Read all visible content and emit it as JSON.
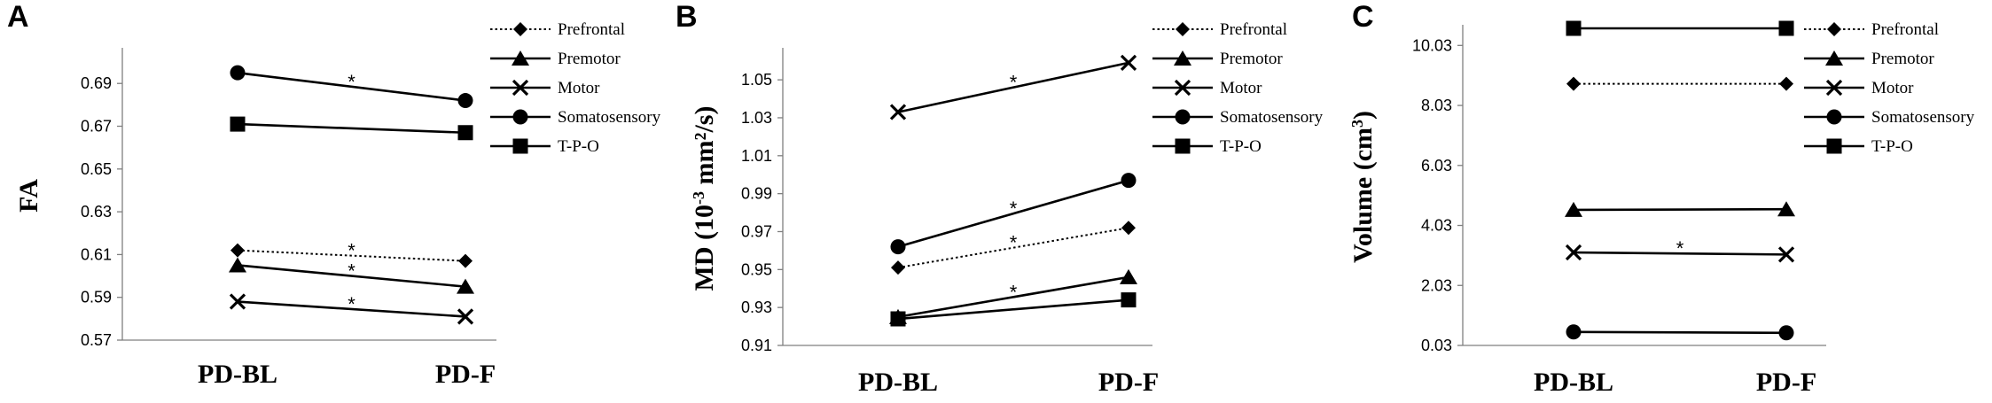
{
  "chart_data": [
    {
      "type": "line",
      "panel": "A",
      "ylabel": "FA",
      "ylabel_sup": "",
      "ylabel_suffix": "",
      "ylim": [
        0.57,
        0.705
      ],
      "yticks": [
        "0.57",
        "0.59",
        "0.61",
        "0.63",
        "0.65",
        "0.67",
        "0.69"
      ],
      "categories": [
        "PD-BL",
        "PD-F"
      ],
      "series": [
        {
          "name": "Prefrontal",
          "marker": "diamond",
          "dash": "dotted",
          "values": [
            0.612,
            0.607
          ],
          "sig": true
        },
        {
          "name": "Premotor",
          "marker": "triangle",
          "dash": "solid",
          "values": [
            0.605,
            0.595
          ],
          "sig": true
        },
        {
          "name": "Motor",
          "marker": "x",
          "dash": "solid",
          "values": [
            0.588,
            0.581
          ],
          "sig": true
        },
        {
          "name": "Somatosensory",
          "marker": "circle",
          "dash": "solid",
          "values": [
            0.695,
            0.682
          ],
          "sig": true
        },
        {
          "name": "T-P-O",
          "marker": "square",
          "dash": "solid",
          "values": [
            0.671,
            0.667
          ],
          "sig": false
        }
      ],
      "significance_marker": "*",
      "legend_placement": "top-right",
      "grid": false
    },
    {
      "type": "line",
      "panel": "B",
      "ylabel": "MD (10",
      "ylabel_sup": "-3",
      "ylabel_suffix": " mm²/s)",
      "ylim": [
        0.91,
        1.065
      ],
      "yticks": [
        "0.91",
        "0.93",
        "0.95",
        "0.97",
        "0.99",
        "1.01",
        "1.03",
        "1.05"
      ],
      "categories": [
        "PD-BL",
        "PD-F"
      ],
      "series": [
        {
          "name": "Prefrontal",
          "marker": "diamond",
          "dash": "dotted",
          "values": [
            0.951,
            0.972
          ],
          "sig": true
        },
        {
          "name": "Premotor",
          "marker": "triangle",
          "dash": "solid",
          "values": [
            0.925,
            0.946
          ],
          "sig": true
        },
        {
          "name": "Motor",
          "marker": "x",
          "dash": "solid",
          "values": [
            1.033,
            1.059
          ],
          "sig": true
        },
        {
          "name": "Somatosensory",
          "marker": "circle",
          "dash": "solid",
          "values": [
            0.962,
            0.997
          ],
          "sig": true
        },
        {
          "name": "T-P-O",
          "marker": "square",
          "dash": "solid",
          "values": [
            0.924,
            0.934
          ],
          "sig": false
        }
      ],
      "significance_marker": "*",
      "legend_placement": "top-right",
      "grid": false
    },
    {
      "type": "line",
      "panel": "C",
      "ylabel": "Volume (cm",
      "ylabel_sup": "3",
      "ylabel_suffix": ")",
      "ylim": [
        0.03,
        10.6
      ],
      "yticks": [
        "0.03",
        "2.03",
        "4.03",
        "6.03",
        "8.03",
        "10.03"
      ],
      "categories": [
        "PD-BL",
        "PD-F"
      ],
      "series": [
        {
          "name": "Prefrontal",
          "marker": "diamond",
          "dash": "dotted",
          "values": [
            8.75,
            8.75
          ],
          "sig": false
        },
        {
          "name": "Premotor",
          "marker": "triangle",
          "dash": "solid",
          "values": [
            4.55,
            4.57
          ],
          "sig": false
        },
        {
          "name": "Motor",
          "marker": "x",
          "dash": "solid",
          "values": [
            3.13,
            3.06
          ],
          "sig": true
        },
        {
          "name": "Somatosensory",
          "marker": "circle",
          "dash": "solid",
          "values": [
            0.48,
            0.45
          ],
          "sig": false
        },
        {
          "name": "T-P-O",
          "marker": "square",
          "dash": "solid",
          "values": [
            10.6,
            10.6
          ],
          "sig": false
        }
      ],
      "significance_marker": "*",
      "legend_placement": "top-right",
      "grid": false
    }
  ]
}
